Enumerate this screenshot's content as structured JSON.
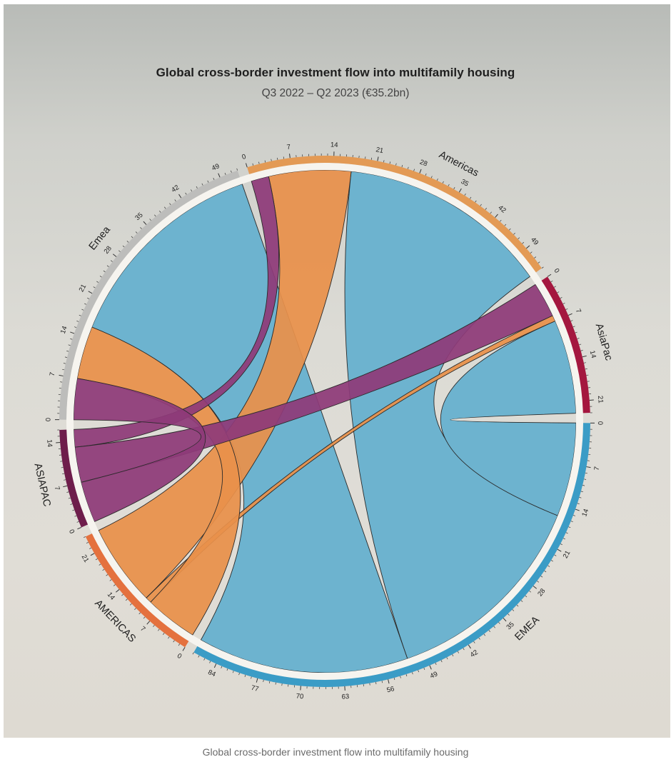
{
  "page": {
    "caption": "Global cross-border investment flow into multifamily housing"
  },
  "chart_data": {
    "type": "chord",
    "title": "Global cross-border investment flow into multifamily housing",
    "subtitle": "Q3 2022 – Q2 2023 (€35.2bn)",
    "units": "€bn (axis ticks as printed)",
    "tick_step": 7,
    "groups": [
      {
        "id": "dst_americas",
        "label": "Americas",
        "role": "destination",
        "color": "#e39a55",
        "total": 53,
        "ticks": [
          0,
          7,
          14,
          21,
          28,
          35,
          42,
          49
        ]
      },
      {
        "id": "dst_asiapac",
        "label": "AsiaPac",
        "role": "destination",
        "color": "#a4173f",
        "total": 23,
        "ticks": [
          0,
          7,
          14,
          21
        ]
      },
      {
        "id": "src_emea",
        "label": "EMEA",
        "role": "source",
        "color": "#3b9cc6",
        "total": 88,
        "ticks": [
          0,
          7,
          14,
          21,
          28,
          35,
          42,
          49,
          56,
          63,
          70,
          77,
          84
        ]
      },
      {
        "id": "src_americas",
        "label": "AMERICAS",
        "role": "source",
        "color": "#e4713e",
        "total": 24,
        "ticks": [
          0,
          7,
          14,
          21
        ]
      },
      {
        "id": "src_asiapac",
        "label": "ASIAPAC",
        "role": "source",
        "color": "#6e1d4b",
        "total": 16,
        "ticks": [
          0,
          7,
          14
        ]
      },
      {
        "id": "dst_emea",
        "label": "Emea",
        "role": "destination",
        "color": "#bdbdbb",
        "total": 52,
        "ticks": [
          0,
          7,
          14,
          21,
          28,
          35,
          42,
          49
        ]
      }
    ],
    "flows": [
      {
        "source": "EMEA",
        "target": "Americas",
        "value": 36,
        "color": "#6db3cf"
      },
      {
        "source": "EMEA",
        "target": "AsiaPac",
        "value": 16,
        "color": "#6db3cf"
      },
      {
        "source": "EMEA",
        "target": "Emea",
        "value": 36,
        "color": "#6db3cf"
      },
      {
        "source": "AMERICAS",
        "target": "Americas",
        "value": 14,
        "color": "#e8904a"
      },
      {
        "source": "AMERICAS",
        "target": "AsiaPac",
        "value": 1,
        "color": "#e8904a"
      },
      {
        "source": "AMERICAS",
        "target": "Emea",
        "value": 9,
        "color": "#e8904a"
      },
      {
        "source": "ASIAPAC",
        "target": "Americas",
        "value": 3,
        "color": "#8e3a78"
      },
      {
        "source": "ASIAPAC",
        "target": "AsiaPac",
        "value": 6,
        "color": "#8e3a78"
      },
      {
        "source": "ASIAPAC",
        "target": "Emea",
        "value": 7,
        "color": "#8e3a78"
      }
    ],
    "legend": "none"
  }
}
